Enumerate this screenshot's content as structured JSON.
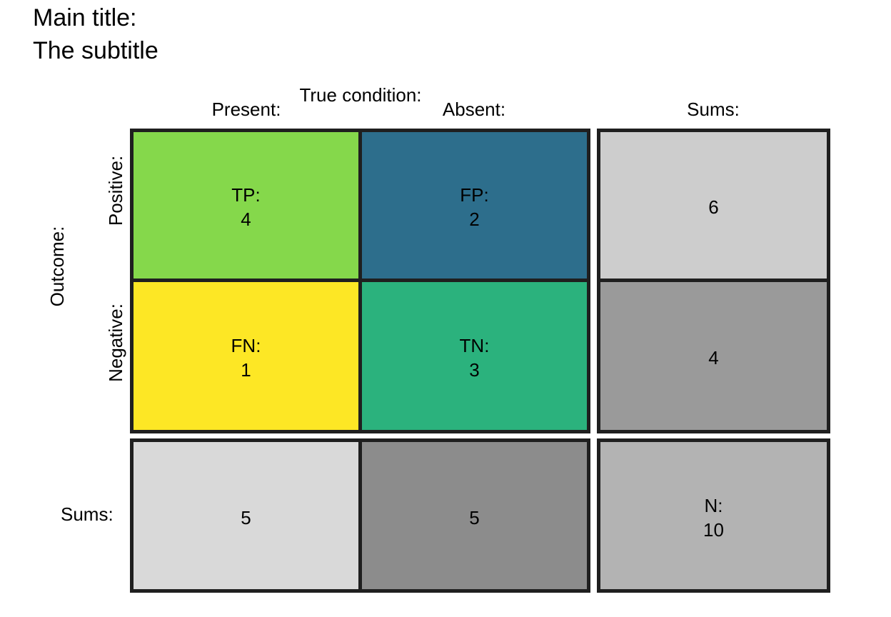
{
  "title": "Main title:",
  "subtitle": "The subtitle",
  "chart_data": {
    "type": "table",
    "column_header": "True condition:",
    "columns": [
      "Present:",
      "Absent:"
    ],
    "column_sums_label": "Sums:",
    "row_header": "Outcome:",
    "rows": [
      "Positive:",
      "Negative:"
    ],
    "row_sums_label": "Sums:",
    "cells": {
      "TP": {
        "label": "TP:",
        "value": 4,
        "color": "#85D84B"
      },
      "FP": {
        "label": "FP:",
        "value": 2,
        "color": "#2D6E8C"
      },
      "FN": {
        "label": "FN:",
        "value": 1,
        "color": "#FDE725"
      },
      "TN": {
        "label": "TN:",
        "value": 3,
        "color": "#2BB27D"
      }
    },
    "row_sums": [
      {
        "value": 6,
        "color": "#CDCDCD"
      },
      {
        "value": 4,
        "color": "#9A9A9A"
      }
    ],
    "column_sums": [
      {
        "value": 5,
        "color": "#D9D9D9"
      },
      {
        "value": 5,
        "color": "#8C8C8C"
      }
    ],
    "total": {
      "label": "N:",
      "value": 10,
      "color": "#B3B3B3"
    }
  }
}
